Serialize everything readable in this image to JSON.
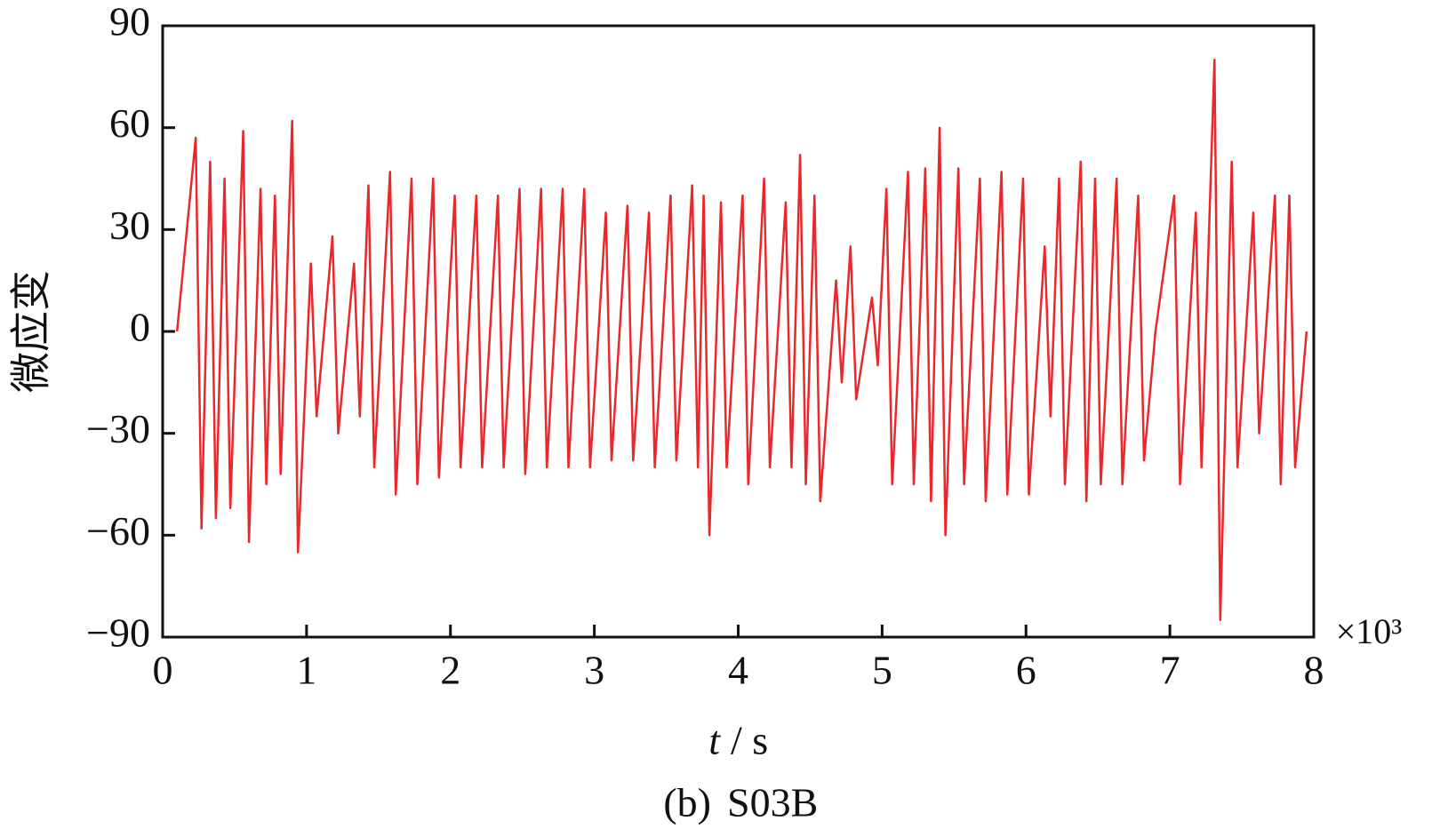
{
  "chart_data": {
    "type": "line",
    "ylabel": "微应变",
    "xlabel_var": "t",
    "xlabel_unit": "/ s",
    "x_multiplier": "×10³",
    "caption_prefix": "(b)",
    "caption_name": "S03B",
    "color": "#e8282b",
    "xlim": [
      0,
      8
    ],
    "xticks": [
      0,
      1,
      2,
      3,
      4,
      5,
      6,
      7,
      8
    ],
    "ylim": [
      -90,
      90
    ],
    "yticks": [
      {
        "value": -90,
        "label": "−90"
      },
      {
        "value": -60,
        "label": "−60"
      },
      {
        "value": -30,
        "label": "−30"
      },
      0,
      30,
      60,
      90
    ],
    "x": [
      0.1,
      0.23,
      0.27,
      0.33,
      0.37,
      0.43,
      0.47,
      0.56,
      0.6,
      0.68,
      0.72,
      0.78,
      0.82,
      0.9,
      0.94,
      1.03,
      1.07,
      1.18,
      1.22,
      1.33,
      1.37,
      1.43,
      1.47,
      1.58,
      1.62,
      1.73,
      1.77,
      1.88,
      1.92,
      2.03,
      2.07,
      2.18,
      2.22,
      2.33,
      2.37,
      2.48,
      2.52,
      2.63,
      2.67,
      2.78,
      2.82,
      2.93,
      2.97,
      3.08,
      3.12,
      3.23,
      3.27,
      3.38,
      3.42,
      3.53,
      3.57,
      3.68,
      3.72,
      3.76,
      3.8,
      3.88,
      3.92,
      4.03,
      4.07,
      4.18,
      4.22,
      4.33,
      4.37,
      4.43,
      4.47,
      4.53,
      4.57,
      4.68,
      4.72,
      4.78,
      4.82,
      4.93,
      4.97,
      5.03,
      5.07,
      5.18,
      5.22,
      5.3,
      5.34,
      5.4,
      5.44,
      5.53,
      5.57,
      5.68,
      5.72,
      5.83,
      5.87,
      5.98,
      6.02,
      6.13,
      6.17,
      6.23,
      6.27,
      6.38,
      6.42,
      6.48,
      6.52,
      6.63,
      6.67,
      6.78,
      6.82,
      6.9,
      7.03,
      7.07,
      7.18,
      7.22,
      7.31,
      7.35,
      7.43,
      7.47,
      7.58,
      7.62,
      7.73,
      7.77,
      7.83,
      7.87,
      7.95
    ],
    "values": [
      0,
      57,
      -58,
      50,
      -55,
      45,
      -52,
      59,
      -62,
      42,
      -45,
      40,
      -42,
      62,
      -65,
      20,
      -25,
      28,
      -30,
      20,
      -25,
      43,
      -40,
      47,
      -48,
      45,
      -45,
      45,
      -43,
      40,
      -40,
      40,
      -40,
      40,
      -40,
      42,
      -42,
      42,
      -40,
      42,
      -40,
      42,
      -40,
      35,
      -38,
      37,
      -38,
      35,
      -40,
      40,
      -38,
      43,
      -40,
      40,
      -60,
      38,
      -40,
      40,
      -45,
      45,
      -40,
      38,
      -40,
      52,
      -45,
      40,
      -50,
      15,
      -15,
      25,
      -20,
      10,
      -10,
      42,
      -45,
      47,
      -45,
      48,
      -50,
      60,
      -60,
      48,
      -45,
      45,
      -50,
      47,
      -48,
      45,
      -48,
      25,
      -25,
      45,
      -45,
      50,
      -50,
      45,
      -45,
      45,
      -45,
      40,
      -38,
      0,
      40,
      -45,
      35,
      -40,
      80,
      -85,
      50,
      -40,
      35,
      -30,
      40,
      -45,
      40,
      -40,
      0
    ]
  }
}
